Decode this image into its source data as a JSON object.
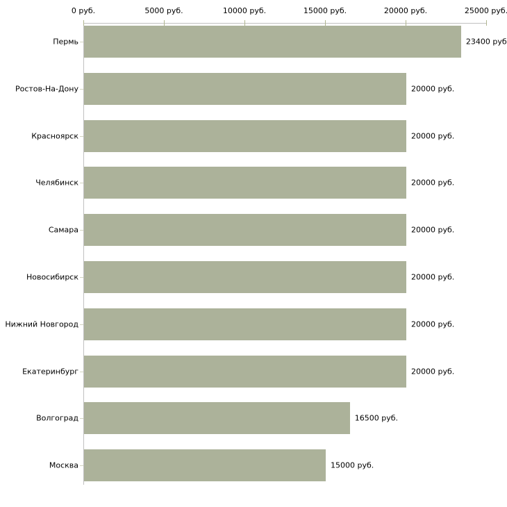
{
  "chart_data": {
    "type": "bar",
    "orientation": "horizontal",
    "title": "",
    "xlabel": "",
    "ylabel": "",
    "unit": "руб.",
    "categories": [
      "Пермь",
      "Ростов-На-Дону",
      "Красноярск",
      "Челябинск",
      "Самара",
      "Новосибирск",
      "Нижний Новгород",
      "Екатеринбург",
      "Волгоград",
      "Москва"
    ],
    "values": [
      23400,
      20000,
      20000,
      20000,
      20000,
      20000,
      20000,
      20000,
      16500,
      15000
    ],
    "value_labels": [
      "23400 руб.",
      "20000 руб.",
      "20000 руб.",
      "20000 руб.",
      "20000 руб.",
      "20000 руб.",
      "20000 руб.",
      "20000 руб.",
      "16500 руб.",
      "15000 руб."
    ],
    "x_axis": {
      "position": "top",
      "min": 0,
      "max": 25000,
      "ticks": [
        0,
        5000,
        10000,
        15000,
        20000,
        25000
      ],
      "tick_labels": [
        "0 руб.",
        "5000 руб.",
        "10000 руб.",
        "15000 руб.",
        "20000 руб.",
        "25000 руб."
      ]
    },
    "grid": false,
    "legend": null,
    "colors": {
      "bar": "#acb29a",
      "axis_line": "#c0c0c0",
      "x_tick_mark": "#b0b58e",
      "y_tick_mark": "#d2d4bf",
      "text": "#000000",
      "background": "#ffffff"
    }
  }
}
